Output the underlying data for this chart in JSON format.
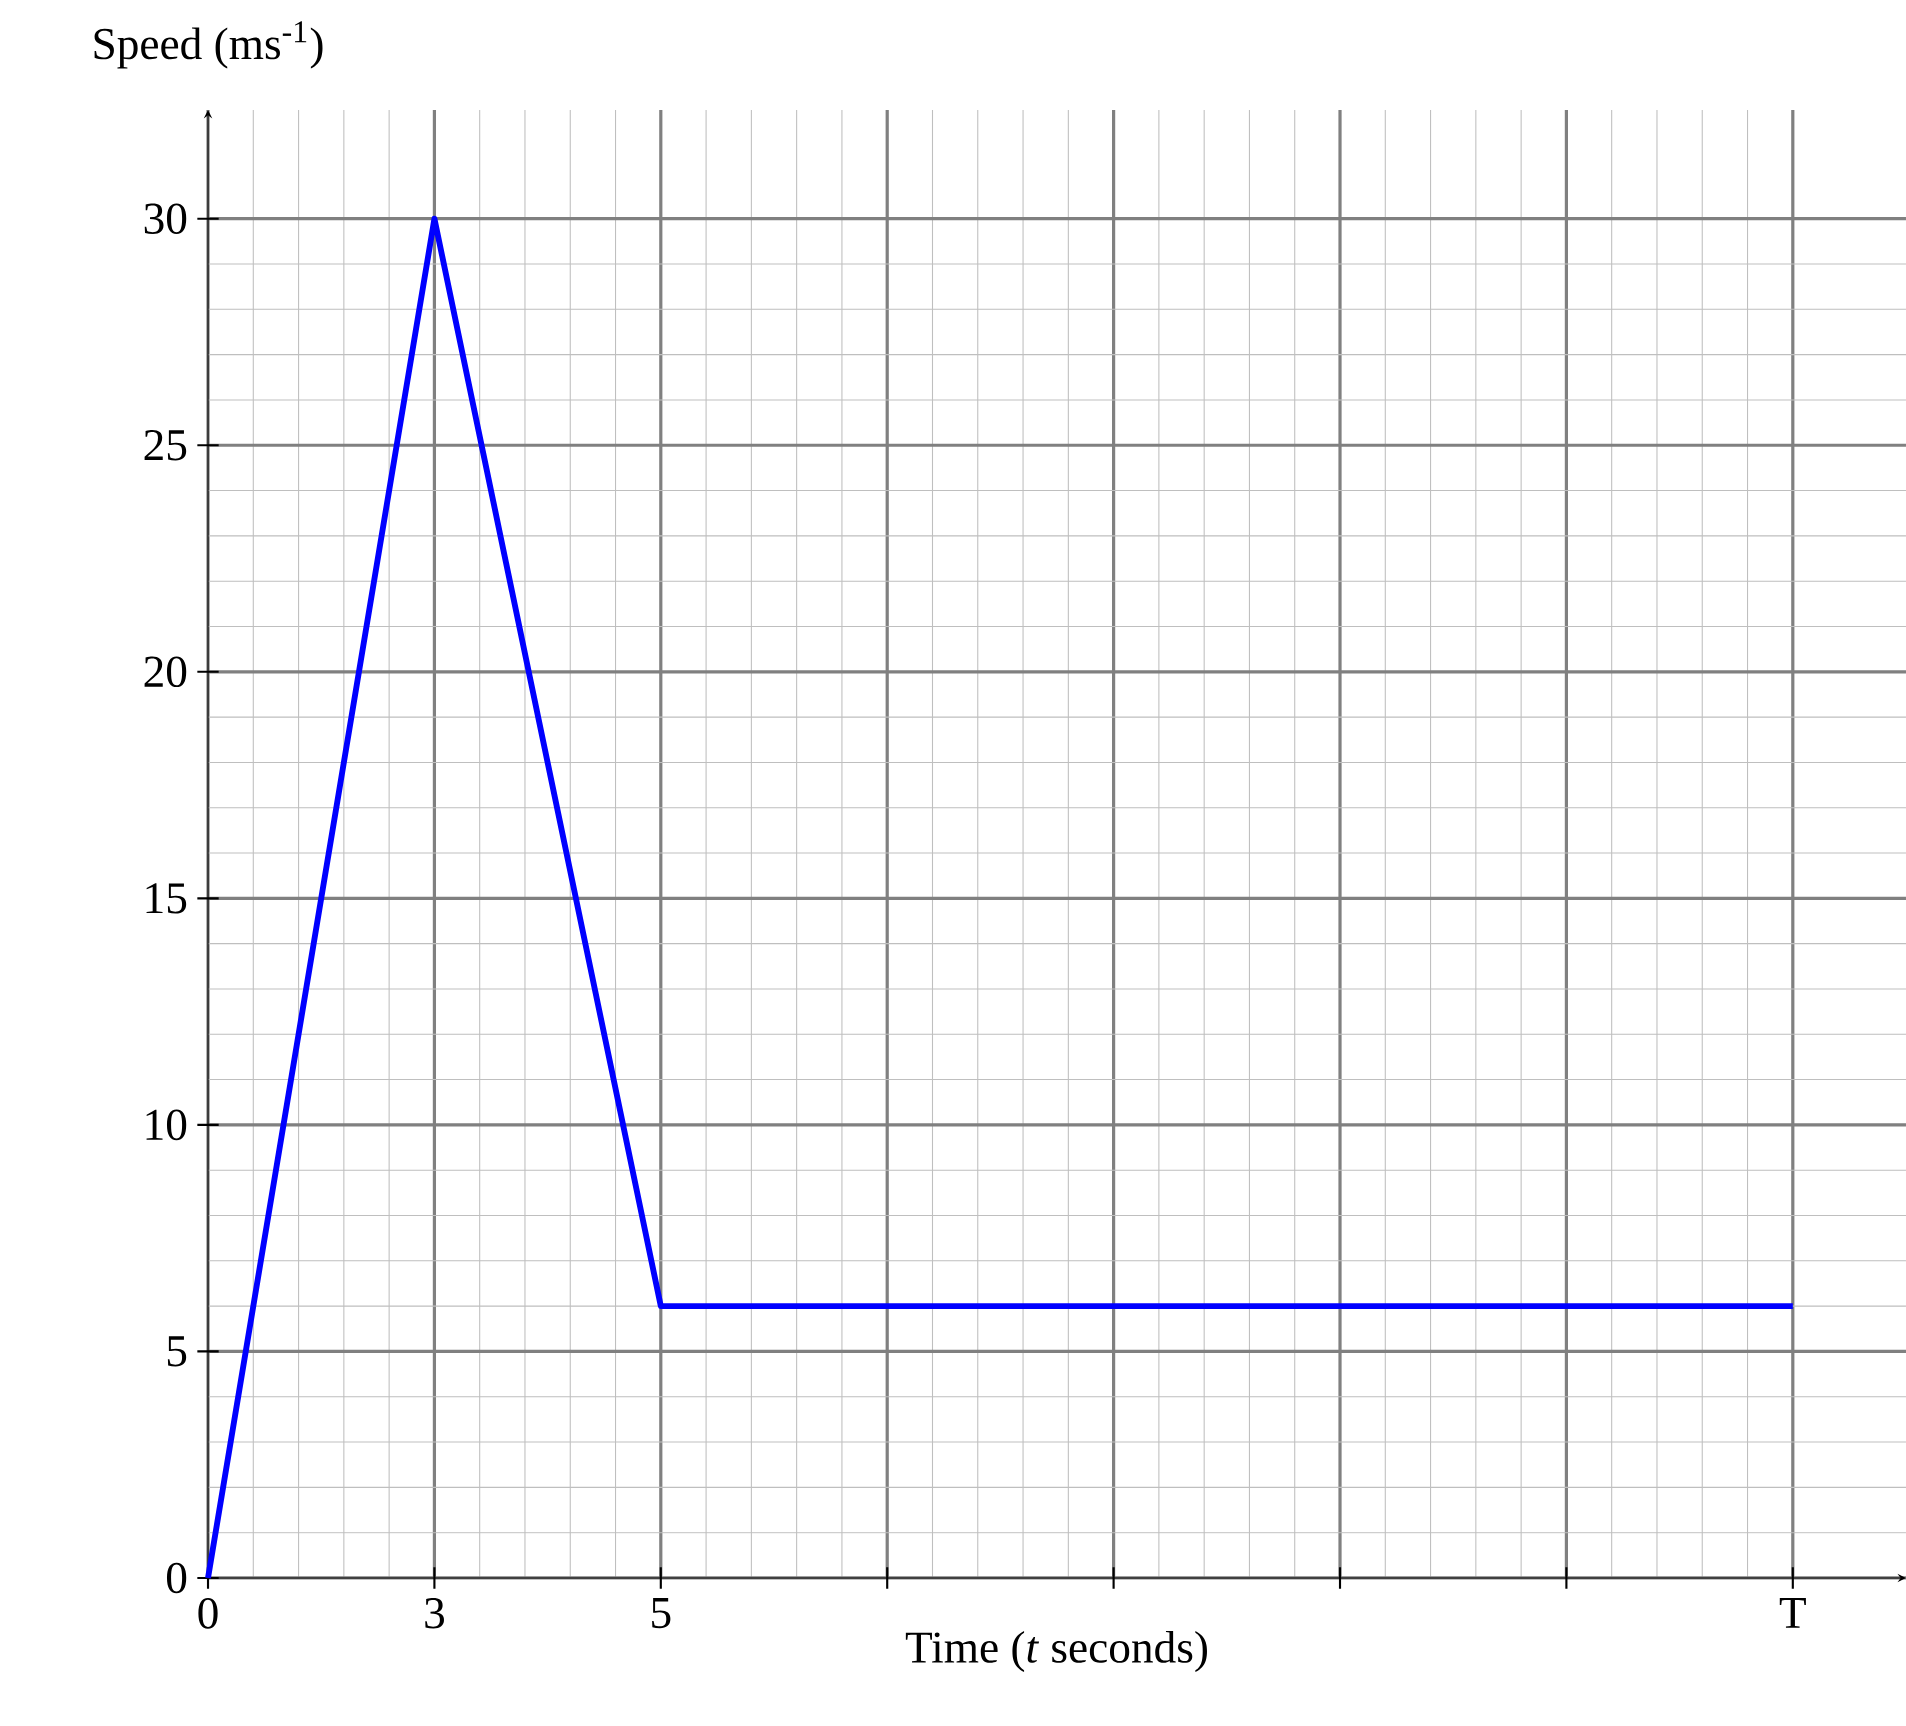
{
  "chart_data": {
    "type": "line",
    "xlabel": "Time (*t* seconds)",
    "ylabel": "Speed (ms$^{-1}$)",
    "categories": [
      "0",
      "3",
      "5",
      null,
      null,
      null,
      null,
      "T"
    ],
    "values": [
      0,
      30,
      6,
      6,
      6,
      6,
      6,
      6
    ],
    "color": "#0000ff",
    "ylim": [
      0,
      32.4
    ],
    "yticks": [
      0,
      5,
      10,
      15,
      20,
      25,
      30
    ],
    "grid": true
  }
}
